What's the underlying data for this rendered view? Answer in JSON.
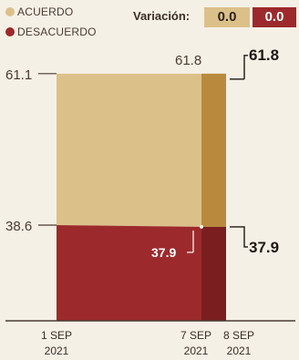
{
  "legend": [
    {
      "label": "ACUERDO",
      "color": "#dcc08a"
    },
    {
      "label": "DESACUERDO",
      "color": "#9c2a2c"
    }
  ],
  "variation": {
    "label": "Variación:",
    "agree": "0.0",
    "disagree": "0.0"
  },
  "chart_data": {
    "type": "area",
    "stacked": true,
    "x": [
      "1 SEP 2021",
      "7 SEP 2021",
      "8 SEP 2021"
    ],
    "x_tick_labels": [
      {
        "line1": "1 SEP",
        "line2": "2021"
      },
      {
        "line1": "7 SEP",
        "line2": "2021"
      },
      {
        "line1": "8 SEP",
        "line2": "2021"
      }
    ],
    "series": [
      {
        "name": "DESACUERDO",
        "color": "#9c2a2c",
        "highlight_color": "#7a1e1f",
        "values": [
          38.6,
          37.9,
          37.9
        ]
      },
      {
        "name": "ACUERDO",
        "color": "#dcc08a",
        "highlight_color": "#b98a3e",
        "values": [
          61.1,
          61.8,
          61.8
        ]
      }
    ],
    "data_labels": {
      "start_agree": "61.1",
      "start_disagree": "38.6",
      "prev_agree": "61.8",
      "prev_disagree": "37.9",
      "end_agree": "61.8",
      "end_disagree": "37.9"
    },
    "ylim": [
      0,
      100
    ],
    "grid": false,
    "legend_position": "top-left"
  }
}
